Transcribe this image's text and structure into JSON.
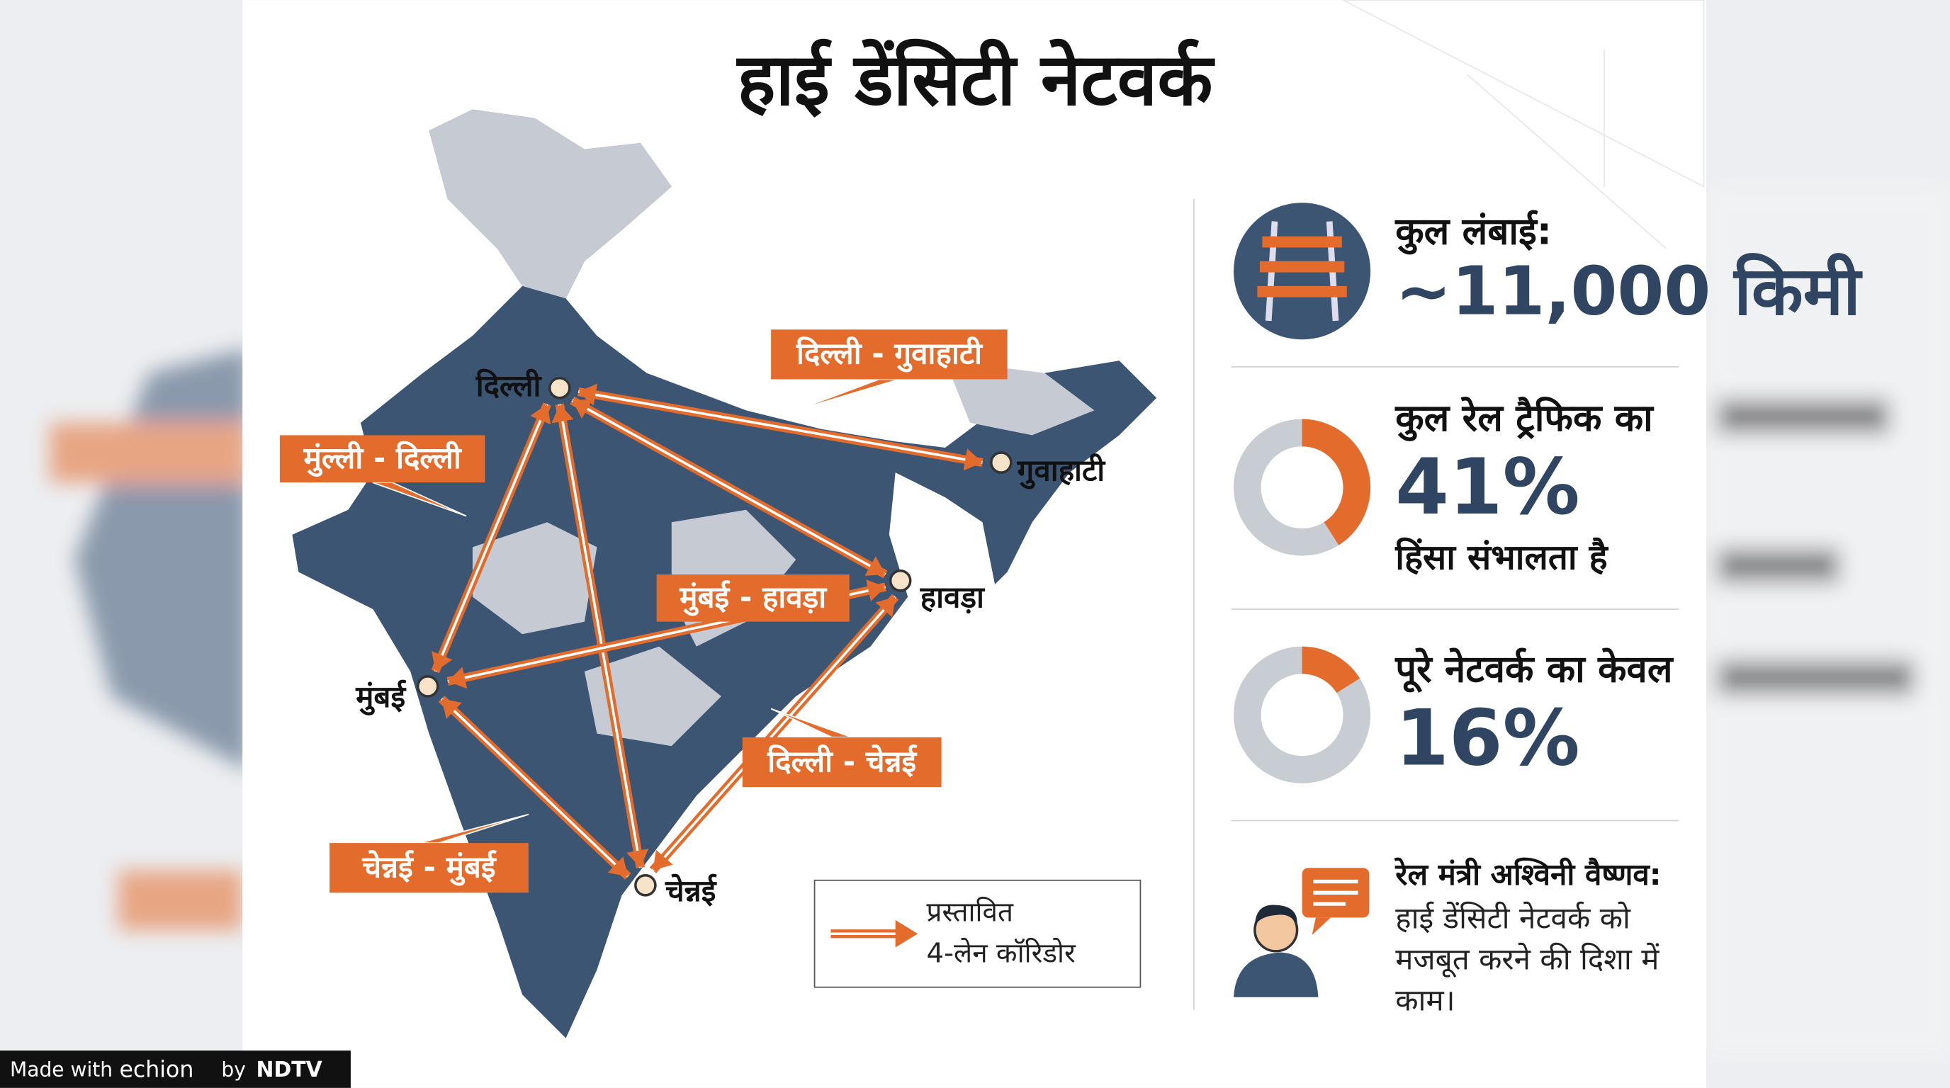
{
  "title": "हाई डेंसिटी नेटवर्क",
  "map": {
    "cities": [
      {
        "name": "दिल्ली"
      },
      {
        "name": "गुवाहाटी"
      },
      {
        "name": "हावड़ा"
      },
      {
        "name": "मुंबई"
      },
      {
        "name": "चेन्नई"
      }
    ],
    "corridors": [
      {
        "label": "दिल्ली - गुवाहाटी"
      },
      {
        "label": "मुंल्ली - दिल्ली"
      },
      {
        "label": "मुंबई - हावड़ा"
      },
      {
        "label": "दिल्ली - चेन्नई"
      },
      {
        "label": "चेन्नई - मुंबई"
      }
    ]
  },
  "legend": {
    "line1": "प्रस्तावित",
    "line2": "4-लेन कॉरिडोर"
  },
  "stats": [
    {
      "heading": "कुल लंबाई:",
      "value_label": "~11,000 किमी"
    },
    {
      "heading": "कुल रेल ट्रैफिक का",
      "value": 41,
      "value_label": "41%",
      "footer": "हिंसा संभालता है"
    },
    {
      "heading": "पूरे नेटवर्क का केवल",
      "value": 16,
      "value_label": "16%"
    }
  ],
  "quote": {
    "speaker": "रेल मंत्री अश्विनी वैष्णव:",
    "lines": [
      "हाई डेंसिटी नेटवर्क को",
      "मजबूत करने की दिशा में",
      "काम।"
    ]
  },
  "footer": {
    "made_with": "Made with",
    "brand": "echion",
    "by": "by",
    "ndtv": "NDTV"
  }
}
